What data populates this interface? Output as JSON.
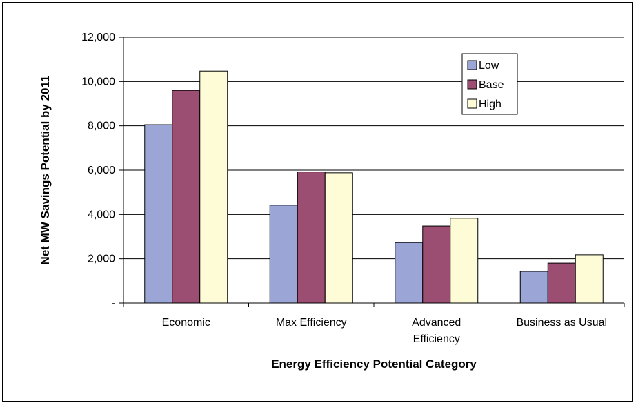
{
  "chart_data": {
    "type": "bar",
    "title": "",
    "xlabel": "Energy Efficiency Potential Category",
    "ylabel": "Net MW Savings Potential by 2011",
    "categories": [
      [
        "Economic"
      ],
      [
        "Max Efficiency"
      ],
      [
        "Advanced",
        "Efficiency"
      ],
      [
        "Business as Usual"
      ]
    ],
    "series": [
      {
        "name": "Low",
        "color": "#9ba6d6",
        "values": [
          8050,
          4420,
          2730,
          1430
        ]
      },
      {
        "name": "Base",
        "color": "#9b4d72",
        "values": [
          9600,
          5920,
          3480,
          1800
        ]
      },
      {
        "name": "High",
        "color": "#fefcd6",
        "values": [
          10470,
          5880,
          3830,
          2180
        ]
      }
    ],
    "ylim": [
      0,
      12000
    ],
    "yticks": [
      0,
      2000,
      4000,
      6000,
      8000,
      10000,
      12000
    ],
    "ytick_labels": [
      "-",
      "2,000",
      "4,000",
      "6,000",
      "8,000",
      "10,000",
      "12,000"
    ],
    "grid": true,
    "legend_position": "top-right"
  }
}
